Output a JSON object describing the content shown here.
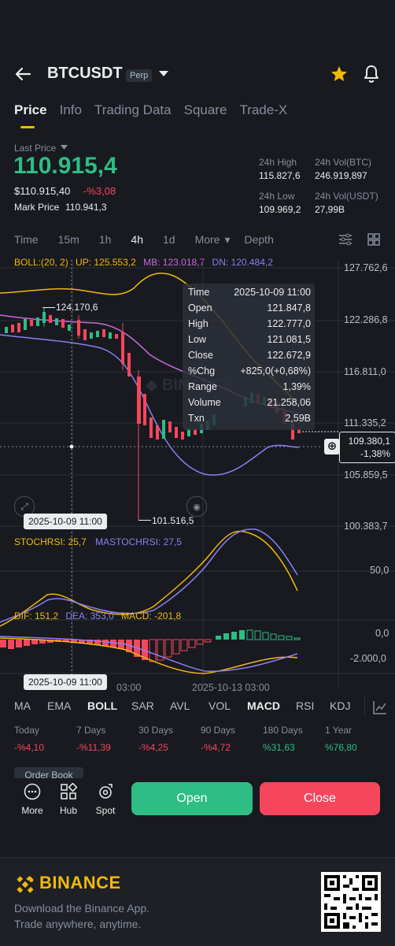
{
  "header": {
    "title": "BTCUSDT",
    "badge": "Perp"
  },
  "tabs": [
    "Price",
    "Info",
    "Trading Data",
    "Square",
    "Trade-X"
  ],
  "price": {
    "last_label": "Last Price",
    "last": "110.915,4",
    "usd": "$110.915,40",
    "change": "-%3,08",
    "mark_label": "Mark Price",
    "mark": "110.941,3"
  },
  "stats": {
    "high_label": "24h High",
    "high": "115.827,6",
    "volbtc_label": "24h Vol(BTC)",
    "volbtc": "246.919,897",
    "low_label": "24h Low",
    "low": "109.969,2",
    "volusdt_label": "24h Vol(USDT)",
    "volusdt": "27,99B"
  },
  "timeframes": [
    "Time",
    "15m",
    "1h",
    "4h",
    "1d",
    "More",
    "Depth"
  ],
  "boll": {
    "label": "BOLL:(20, 2)",
    "up": "UP: 125.553,2",
    "mb": "MB: 123.018,7",
    "dn": "DN: 120.484,2"
  },
  "axis_main": [
    "127.762,6",
    "122.286,8",
    "116.811,0",
    "111.335,2",
    "105.859,5",
    "100.383,7"
  ],
  "markers": {
    "high": "124.170,6",
    "low": "101.516,5",
    "date": "2025-10-09 11:00",
    "current": "109.380,1",
    "current_pct": "-1,38%"
  },
  "tooltip": [
    {
      "k": "Time",
      "v": "2025-10-09 11:00"
    },
    {
      "k": "Open",
      "v": "121.847,8"
    },
    {
      "k": "High",
      "v": "122.777,0"
    },
    {
      "k": "Low",
      "v": "121.081,5"
    },
    {
      "k": "Close",
      "v": "122.672,9"
    },
    {
      "k": "%Chg",
      "v": "+825,0(+0,68%)"
    },
    {
      "k": "Range",
      "v": "1,39%"
    },
    {
      "k": "Volume",
      "v": "21.258,06"
    },
    {
      "k": "Txn",
      "v": "2,59B"
    }
  ],
  "stoch": {
    "label": "STOCHRSI: 25,7",
    "label2": "MASTOCHRSI: 27,5",
    "axis": "50,0"
  },
  "macd": {
    "dif": "DIF: 151,2",
    "dea": "DEA: 353,0",
    "macd": "MACD: -201,8",
    "axis1": "0,0",
    "axis2": "-2.000,0"
  },
  "xaxis": {
    "a": "03:00",
    "b": "2025-10-13 03:00",
    "tip": "2025-10-09 11:00"
  },
  "indicators": [
    "MA",
    "EMA",
    "BOLL",
    "SAR",
    "AVL",
    "VOL",
    "MACD",
    "RSI",
    "KDJ"
  ],
  "performance": [
    {
      "label": "Today",
      "value": "-%4,10"
    },
    {
      "label": "7 Days",
      "value": "-%11,39"
    },
    {
      "label": "30 Days",
      "value": "-%4,25"
    },
    {
      "label": "90 Days",
      "value": "-%4,72"
    },
    {
      "label": "180 Days",
      "value": "%31,63"
    },
    {
      "label": "1 Year",
      "value": "%76,80"
    }
  ],
  "bottom": {
    "more": "More",
    "hub": "Hub",
    "spot": "Spot",
    "open": "Open",
    "close": "Close",
    "partial": "Order Book"
  },
  "footer": {
    "brand": "BINANCE",
    "line1": "Download the Binance App.",
    "line2": "Trade anywhere, anytime."
  },
  "colors": {
    "green": "#2ebd85",
    "red": "#f6465d",
    "yellow": "#f0b90b",
    "bg": "#181a20"
  }
}
